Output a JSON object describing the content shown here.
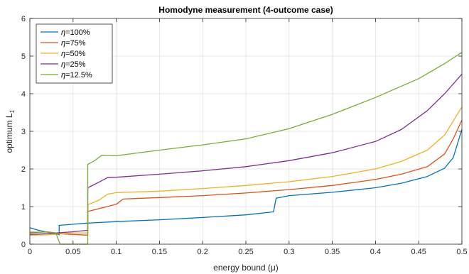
{
  "chart_data": {
    "type": "line",
    "title": "Homodyne measurement (4-outcome case)",
    "xlabel": "energy bound (μ)",
    "ylabel": "optimum L",
    "ylabel_sub": "1",
    "xlim": [
      0,
      0.5
    ],
    "ylim": [
      0,
      6
    ],
    "x_ticks": [
      0,
      0.05,
      0.1,
      0.15,
      0.2,
      0.25,
      0.3,
      0.35,
      0.4,
      0.45,
      0.5
    ],
    "y_ticks": [
      0,
      1,
      2,
      3,
      4,
      5,
      6
    ],
    "x_tick_labels": [
      "0",
      "0.05",
      "0.1",
      "0.15",
      "0.2",
      "0.25",
      "0.3",
      "0.35",
      "0.4",
      "0.45",
      "0.5"
    ],
    "y_tick_labels": [
      "0",
      "1",
      "2",
      "3",
      "4",
      "5",
      "6"
    ],
    "grid": true,
    "legend_position": "top-left",
    "series": [
      {
        "name": "η=100%",
        "legend_prefix": "η",
        "legend_suffix": "=100%",
        "color": "#0072bd",
        "points": [
          [
            0,
            0.44
          ],
          [
            0.01,
            0.37
          ],
          [
            0.02,
            0.32
          ],
          [
            0.03,
            0.28
          ],
          [
            0.034,
            0.25
          ],
          [
            0.034,
            0.5
          ],
          [
            0.05,
            0.53
          ],
          [
            0.067,
            0.56
          ],
          [
            0.1,
            0.6
          ],
          [
            0.15,
            0.65
          ],
          [
            0.2,
            0.71
          ],
          [
            0.25,
            0.78
          ],
          [
            0.282,
            0.86
          ],
          [
            0.285,
            1.22
          ],
          [
            0.3,
            1.29
          ],
          [
            0.35,
            1.38
          ],
          [
            0.4,
            1.5
          ],
          [
            0.43,
            1.62
          ],
          [
            0.46,
            1.8
          ],
          [
            0.48,
            2.02
          ],
          [
            0.49,
            2.3
          ],
          [
            0.5,
            3.05
          ]
        ]
      },
      {
        "name": "η=75%",
        "legend_prefix": "η",
        "legend_suffix": "=75%",
        "color": "#d95319",
        "points": [
          [
            0,
            0.3
          ],
          [
            0.02,
            0.33
          ],
          [
            0.04,
            0.27
          ],
          [
            0.067,
            0.24
          ],
          [
            0.067,
            0.87
          ],
          [
            0.1,
            1.06
          ],
          [
            0.108,
            1.2
          ],
          [
            0.15,
            1.24
          ],
          [
            0.2,
            1.29
          ],
          [
            0.25,
            1.36
          ],
          [
            0.3,
            1.45
          ],
          [
            0.35,
            1.56
          ],
          [
            0.4,
            1.72
          ],
          [
            0.43,
            1.86
          ],
          [
            0.46,
            2.06
          ],
          [
            0.48,
            2.4
          ],
          [
            0.49,
            2.8
          ],
          [
            0.5,
            3.3
          ]
        ]
      },
      {
        "name": "η=50%",
        "legend_prefix": "η",
        "legend_suffix": "=50%",
        "color": "#edb120",
        "points": [
          [
            0,
            0.24
          ],
          [
            0.02,
            0.25
          ],
          [
            0.05,
            0.3
          ],
          [
            0.067,
            0.3
          ],
          [
            0.067,
            1.05
          ],
          [
            0.08,
            1.17
          ],
          [
            0.09,
            1.33
          ],
          [
            0.1,
            1.37
          ],
          [
            0.15,
            1.41
          ],
          [
            0.2,
            1.48
          ],
          [
            0.25,
            1.56
          ],
          [
            0.3,
            1.66
          ],
          [
            0.35,
            1.8
          ],
          [
            0.4,
            2.0
          ],
          [
            0.43,
            2.2
          ],
          [
            0.46,
            2.5
          ],
          [
            0.48,
            2.9
          ],
          [
            0.5,
            3.65
          ]
        ]
      },
      {
        "name": "η=25%",
        "legend_prefix": "η",
        "legend_suffix": "=25%",
        "color": "#7e2f8e",
        "points": [
          [
            0,
            0.26
          ],
          [
            0.02,
            0.28
          ],
          [
            0.05,
            0.33
          ],
          [
            0.067,
            0.37
          ],
          [
            0.067,
            1.5
          ],
          [
            0.08,
            1.65
          ],
          [
            0.09,
            1.77
          ],
          [
            0.1,
            1.78
          ],
          [
            0.15,
            1.86
          ],
          [
            0.2,
            1.95
          ],
          [
            0.25,
            2.06
          ],
          [
            0.3,
            2.22
          ],
          [
            0.35,
            2.43
          ],
          [
            0.4,
            2.73
          ],
          [
            0.43,
            3.05
          ],
          [
            0.46,
            3.55
          ],
          [
            0.48,
            4.0
          ],
          [
            0.5,
            4.52
          ]
        ]
      },
      {
        "name": "η=12.5%",
        "legend_prefix": "η",
        "legend_suffix": "=12.5%",
        "color": "#77ac30",
        "points": [
          [
            0,
            0.32
          ],
          [
            0.02,
            0.32
          ],
          [
            0.03,
            0.3
          ],
          [
            0.035,
            0.0
          ],
          [
            0.067,
            0.0
          ],
          [
            0.067,
            2.12
          ],
          [
            0.075,
            2.22
          ],
          [
            0.083,
            2.36
          ],
          [
            0.1,
            2.35
          ],
          [
            0.15,
            2.5
          ],
          [
            0.2,
            2.64
          ],
          [
            0.25,
            2.8
          ],
          [
            0.3,
            3.07
          ],
          [
            0.35,
            3.45
          ],
          [
            0.4,
            3.9
          ],
          [
            0.45,
            4.4
          ],
          [
            0.48,
            4.8
          ],
          [
            0.5,
            5.1
          ]
        ]
      }
    ]
  }
}
